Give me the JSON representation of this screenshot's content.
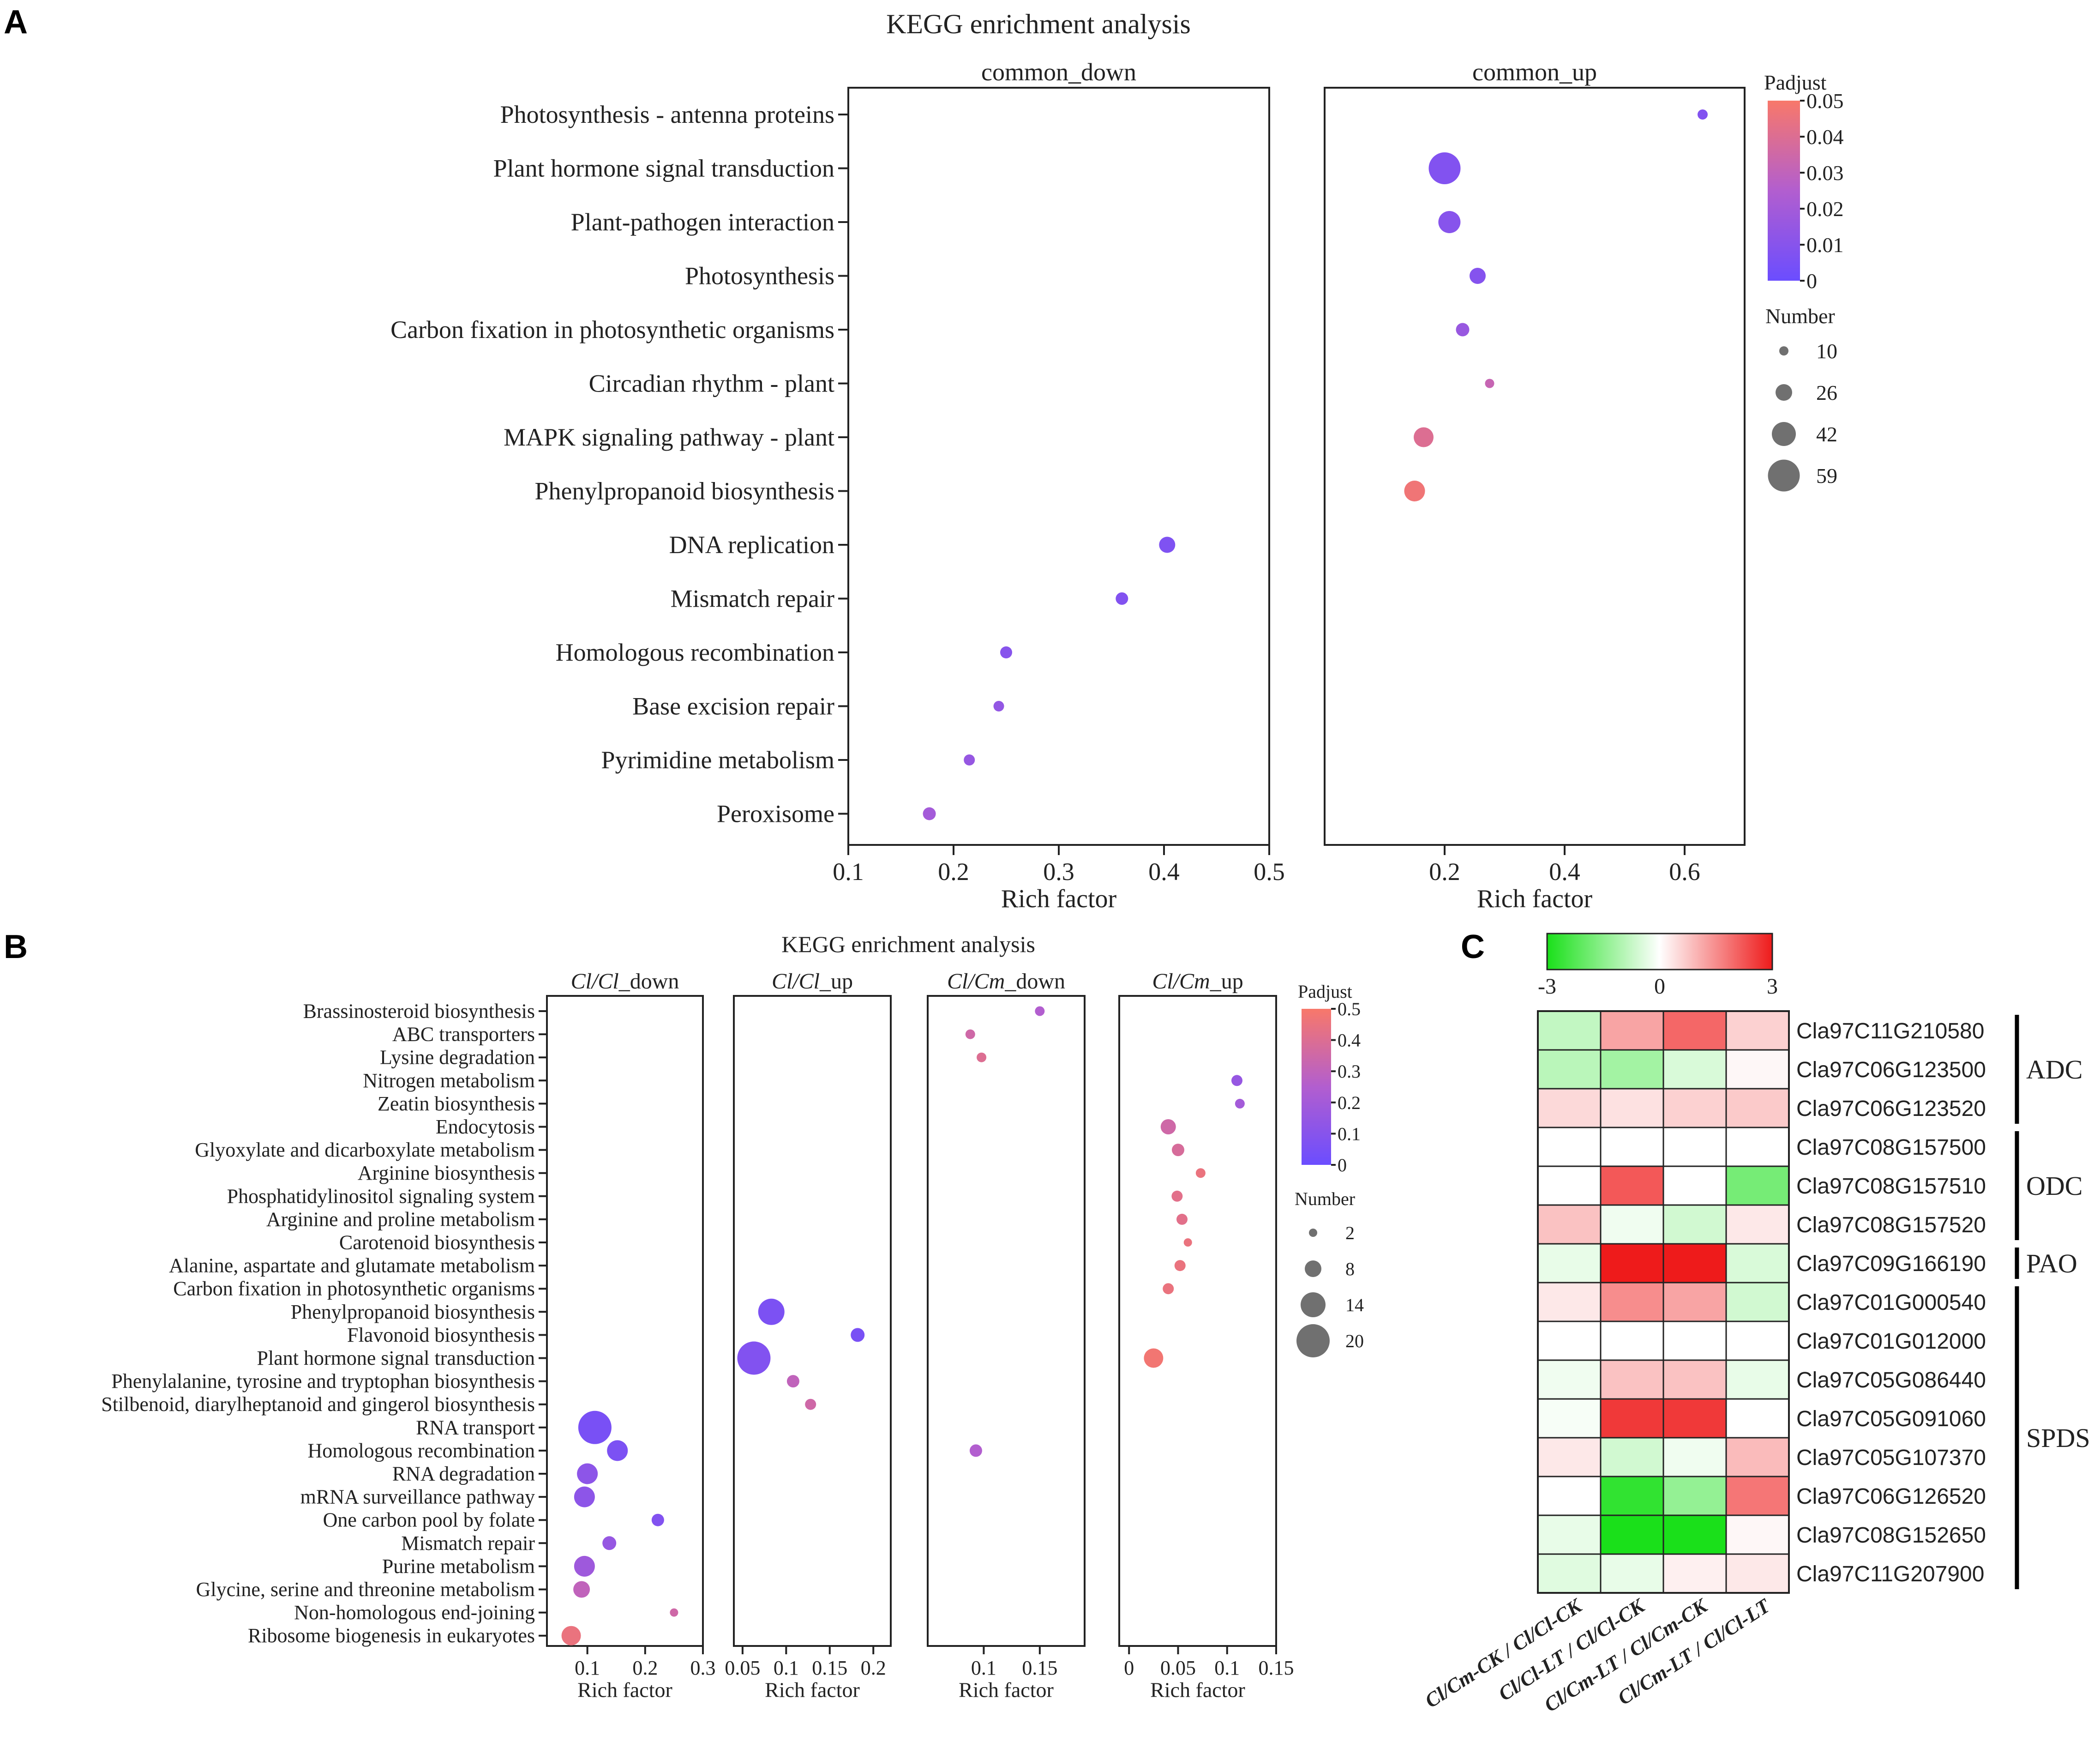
{
  "panels": {
    "a": "A",
    "b": "B",
    "c": "C"
  },
  "colors": {
    "low": "#6b4dff",
    "mid": "#b25ecf",
    "high": "#f8786a",
    "heat_low": "#1ae01a",
    "heat_mid": "#ffffff",
    "heat_high": "#ee1b1b",
    "axis": "#222222"
  },
  "chart_data": [
    {
      "type": "scatter",
      "panel": "A",
      "title": "KEGG enrichment analysis",
      "xlabel": "Rich factor",
      "categories": [
        "Photosynthesis - antenna proteins",
        "Plant hormone signal transduction",
        "Plant-pathogen interaction",
        "Photosynthesis",
        "Carbon fixation in photosynthetic organisms",
        "Circadian rhythm - plant",
        "MAPK signaling pathway - plant",
        "Phenylpropanoid biosynthesis",
        "DNA replication",
        "Mismatch repair",
        "Homologous recombination",
        "Base excision repair",
        "Pyrimidine metabolism",
        "Peroxisome"
      ],
      "color_legend": {
        "title": "Padjust",
        "min": 0,
        "max": 0.05,
        "ticks": [
          "0.05",
          "0.04",
          "0.03",
          "0.02",
          "0.01",
          "0"
        ]
      },
      "size_legend": {
        "title": "Number",
        "values": [
          10,
          26,
          42,
          59
        ],
        "labels": [
          "10",
          "26",
          "42",
          "59"
        ]
      },
      "facets": [
        {
          "name": "common_down",
          "xlim": [
            0.1,
            0.5
          ],
          "xticks": [
            0.1,
            0.2,
            0.3,
            0.4,
            0.5
          ],
          "xtick_labels": [
            "0.1",
            "0.2",
            "0.3",
            "0.4",
            "0.5"
          ],
          "points": [
            {
              "cat": "DNA replication",
              "x": 0.403,
              "size": 25,
              "padj": 0.007
            },
            {
              "cat": "Mismatch repair",
              "x": 0.36,
              "size": 17,
              "padj": 0.008
            },
            {
              "cat": "Homologous recombination",
              "x": 0.25,
              "size": 16,
              "padj": 0.01
            },
            {
              "cat": "Base excision repair",
              "x": 0.243,
              "size": 13,
              "padj": 0.014
            },
            {
              "cat": "Pyrimidine metabolism",
              "x": 0.215,
              "size": 14,
              "padj": 0.015
            },
            {
              "cat": "Peroxisome",
              "x": 0.177,
              "size": 18,
              "padj": 0.02
            }
          ]
        },
        {
          "name": "common_up",
          "xlim": [
            0.0,
            0.7
          ],
          "xticks": [
            0.2,
            0.4,
            0.6
          ],
          "xtick_labels": [
            "0.2",
            "0.4",
            "0.6"
          ],
          "points": [
            {
              "cat": "Photosynthesis - antenna proteins",
              "x": 0.63,
              "size": 12,
              "padj": 0.008
            },
            {
              "cat": "Plant hormone signal transduction",
              "x": 0.2,
              "size": 59,
              "padj": 0.008
            },
            {
              "cat": "Plant-pathogen interaction",
              "x": 0.208,
              "size": 38,
              "padj": 0.01
            },
            {
              "cat": "Photosynthesis",
              "x": 0.255,
              "size": 25,
              "padj": 0.009
            },
            {
              "cat": "Carbon fixation in photosynthetic organisms",
              "x": 0.23,
              "size": 19,
              "padj": 0.016
            },
            {
              "cat": "Circadian rhythm - plant",
              "x": 0.275,
              "size": 10,
              "padj": 0.032
            },
            {
              "cat": "MAPK signaling pathway - plant",
              "x": 0.165,
              "size": 33,
              "padj": 0.04
            },
            {
              "cat": "Phenylpropanoid biosynthesis",
              "x": 0.15,
              "size": 35,
              "padj": 0.047
            }
          ]
        }
      ]
    },
    {
      "type": "scatter",
      "panel": "B",
      "title": "KEGG enrichment analysis",
      "xlabel": "Rich factor",
      "categories": [
        "Brassinosteroid biosynthesis",
        "ABC transporters",
        "Lysine degradation",
        "Nitrogen metabolism",
        "Zeatin biosynthesis",
        "Endocytosis",
        "Glyoxylate and dicarboxylate metabolism",
        "Arginine biosynthesis",
        "Phosphatidylinositol signaling system",
        "Arginine and proline metabolism",
        "Carotenoid biosynthesis",
        "Alanine, aspartate and glutamate metabolism",
        "Carbon fixation in photosynthetic organisms",
        "Phenylpropanoid biosynthesis",
        "Flavonoid biosynthesis",
        "Plant hormone signal transduction",
        "Phenylalanine, tyrosine and tryptophan biosynthesis",
        "Stilbenoid, diarylheptanoid and gingerol biosynthesis",
        "RNA transport",
        "Homologous recombination",
        "RNA degradation",
        "mRNA surveillance pathway",
        "One carbon pool by folate",
        "Mismatch repair",
        "Purine metabolism",
        "Glycine, serine and threonine metabolism",
        "Non-homologous end-joining",
        "Ribosome biogenesis in eukaryotes"
      ],
      "color_legend": {
        "title": "Padjust",
        "min": 0,
        "max": 0.5,
        "ticks": [
          "0.5",
          "0.4",
          "0.3",
          "0.2",
          "0.1",
          "0"
        ]
      },
      "size_legend": {
        "title": "Number",
        "values": [
          2,
          8,
          14,
          20
        ],
        "labels": [
          "2",
          "8",
          "14",
          "20"
        ]
      },
      "facets": [
        {
          "name": "Cl/Cl_down",
          "name_italic": "Cl/Cl",
          "name_rest": "_down",
          "xlim": [
            0.03,
            0.3
          ],
          "xticks": [
            0.1,
            0.2,
            0.3
          ],
          "xtick_labels": [
            "0.1",
            "0.2",
            "0.3"
          ],
          "points": [
            {
              "cat": "RNA transport",
              "x": 0.113,
              "size": 20,
              "padj": 0.05
            },
            {
              "cat": "Homologous recombination",
              "x": 0.152,
              "size": 11,
              "padj": 0.06
            },
            {
              "cat": "RNA degradation",
              "x": 0.1,
              "size": 11,
              "padj": 0.12
            },
            {
              "cat": "mRNA surveillance pathway",
              "x": 0.095,
              "size": 11,
              "padj": 0.12
            },
            {
              "cat": "One carbon pool by folate",
              "x": 0.222,
              "size": 5,
              "padj": 0.08
            },
            {
              "cat": "Mismatch repair",
              "x": 0.138,
              "size": 6,
              "padj": 0.15
            },
            {
              "cat": "Purine metabolism",
              "x": 0.095,
              "size": 11,
              "padj": 0.18
            },
            {
              "cat": "Glycine, serine and threonine metabolism",
              "x": 0.09,
              "size": 8,
              "padj": 0.3
            },
            {
              "cat": "Non-homologous end-joining",
              "x": 0.25,
              "size": 2,
              "padj": 0.35
            },
            {
              "cat": "Ribosome biogenesis in eukaryotes",
              "x": 0.072,
              "size": 10,
              "padj": 0.45
            }
          ]
        },
        {
          "name": "Cl/Cl_up",
          "name_italic": "Cl/Cl",
          "name_rest": "_up",
          "xlim": [
            0.04,
            0.22
          ],
          "xticks": [
            0.05,
            0.1,
            0.15,
            0.2
          ],
          "xtick_labels": [
            "0.05",
            "0.1",
            "0.15",
            "0.2"
          ],
          "points": [
            {
              "cat": "Phenylpropanoid biosynthesis",
              "x": 0.083,
              "size": 15,
              "padj": 0.06
            },
            {
              "cat": "Flavonoid biosynthesis",
              "x": 0.182,
              "size": 6,
              "padj": 0.05
            },
            {
              "cat": "Plant hormone signal transduction",
              "x": 0.063,
              "size": 20,
              "padj": 0.08
            },
            {
              "cat": "Phenylalanine, tyrosine and tryptophan biosynthesis",
              "x": 0.108,
              "size": 5,
              "padj": 0.3
            },
            {
              "cat": "Stilbenoid, diarylheptanoid and gingerol biosynthesis",
              "x": 0.128,
              "size": 4,
              "padj": 0.35
            }
          ]
        },
        {
          "name": "Cl/Cm_down",
          "name_italic": "Cl/Cm",
          "name_rest": "_down",
          "xlim": [
            0.05,
            0.19
          ],
          "xticks": [
            0.1,
            0.15
          ],
          "xtick_labels": [
            "0.1",
            "0.15"
          ],
          "points": [
            {
              "cat": "Brassinosteroid biosynthesis",
              "x": 0.15,
              "size": 3,
              "padj": 0.25
            },
            {
              "cat": "ABC transporters",
              "x": 0.088,
              "size": 3,
              "padj": 0.35
            },
            {
              "cat": "Lysine degradation",
              "x": 0.098,
              "size": 3,
              "padj": 0.4
            },
            {
              "cat": "Homologous recombination",
              "x": 0.093,
              "size": 5,
              "padj": 0.25
            }
          ]
        },
        {
          "name": "Cl/Cm_up",
          "name_italic": "Cl/Cm",
          "name_rest": "_up",
          "xlim": [
            -0.01,
            0.15
          ],
          "xticks": [
            0,
            0.05,
            0.1,
            0.15
          ],
          "xtick_labels": [
            "0",
            "0.05",
            "0.1",
            "0.15"
          ],
          "points": [
            {
              "cat": "Nitrogen metabolism",
              "x": 0.11,
              "size": 4,
              "padj": 0.15
            },
            {
              "cat": "Zeatin biosynthesis",
              "x": 0.113,
              "size": 3,
              "padj": 0.2
            },
            {
              "cat": "Endocytosis",
              "x": 0.04,
              "size": 7,
              "padj": 0.35
            },
            {
              "cat": "Glyoxylate and dicarboxylate metabolism",
              "x": 0.05,
              "size": 5,
              "padj": 0.38
            },
            {
              "cat": "Arginine biosynthesis",
              "x": 0.073,
              "size": 3,
              "padj": 0.45
            },
            {
              "cat": "Phosphatidylinositol signaling system",
              "x": 0.049,
              "size": 4,
              "padj": 0.42
            },
            {
              "cat": "Arginine and proline metabolism",
              "x": 0.054,
              "size": 4,
              "padj": 0.42
            },
            {
              "cat": "Carotenoid biosynthesis",
              "x": 0.06,
              "size": 2,
              "padj": 0.45
            },
            {
              "cat": "Alanine, aspartate and glutamate metabolism",
              "x": 0.052,
              "size": 4,
              "padj": 0.45
            },
            {
              "cat": "Carbon fixation in photosynthetic organisms",
              "x": 0.04,
              "size": 4,
              "padj": 0.45
            },
            {
              "cat": "Plant hormone signal transduction",
              "x": 0.025,
              "size": 10,
              "padj": 0.48
            }
          ]
        }
      ]
    },
    {
      "type": "heatmap",
      "panel": "C",
      "colorbar": {
        "min": -3,
        "max": 3,
        "tick_labels": [
          "-3",
          "0",
          "3"
        ]
      },
      "columns": [
        "Cl/Cm-CK / Cl/Cl-CK",
        "Cl/Cl-LT / Cl/Cl-CK",
        "Cl/Cm-LT / Cl/Cm-CK",
        "Cl/Cm-LT / Cl/Cl-LT"
      ],
      "rows": [
        "Cla97C11G210580",
        "Cla97C06G123500",
        "Cla97C06G123520",
        "Cla97C08G157500",
        "Cla97C08G157510",
        "Cla97C08G157520",
        "Cla97C09G166190",
        "Cla97C01G000540",
        "Cla97C01G012000",
        "Cla97C05G086440",
        "Cla97C05G091060",
        "Cla97C05G107370",
        "Cla97C06G126520",
        "Cla97C08G152650",
        "Cla97C11G207900"
      ],
      "values": [
        [
          -0.8,
          1.2,
          2.0,
          0.6
        ],
        [
          -0.9,
          -1.2,
          -0.5,
          0.1
        ],
        [
          0.5,
          0.4,
          0.6,
          0.7
        ],
        [
          0.0,
          0.0,
          0.0,
          0.0
        ],
        [
          0.0,
          2.2,
          0.0,
          -1.8
        ],
        [
          0.8,
          -0.2,
          -0.6,
          0.3
        ],
        [
          -0.3,
          3.0,
          3.0,
          -0.5
        ],
        [
          0.3,
          1.5,
          1.2,
          -0.6
        ],
        [
          0.0,
          0.0,
          0.0,
          0.0
        ],
        [
          -0.2,
          0.8,
          0.8,
          -0.3
        ],
        [
          -0.1,
          2.6,
          2.6,
          0.0
        ],
        [
          0.3,
          -0.6,
          -0.2,
          0.9
        ],
        [
          0.0,
          -2.7,
          -1.4,
          1.8
        ],
        [
          -0.3,
          -3.0,
          -3.0,
          0.1
        ],
        [
          -0.4,
          -0.3,
          0.2,
          0.3
        ]
      ],
      "groups": [
        {
          "label": "ADC",
          "start": 0,
          "end": 2
        },
        {
          "label": "ODC",
          "start": 3,
          "end": 5
        },
        {
          "label": "PAO",
          "start": 6,
          "end": 6
        },
        {
          "label": "SPDS",
          "start": 7,
          "end": 14
        }
      ]
    }
  ]
}
